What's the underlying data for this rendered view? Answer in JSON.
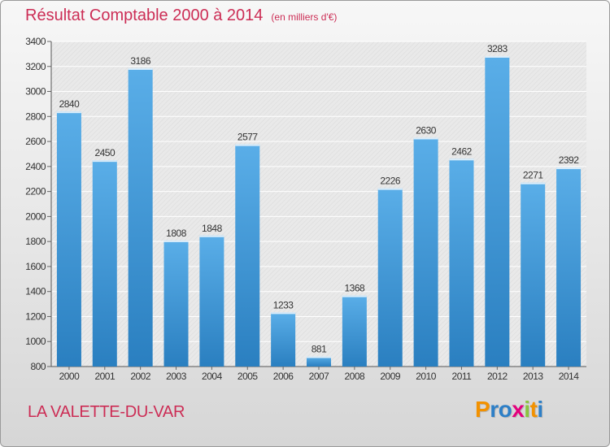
{
  "header": {
    "title": "Résultat Comptable 2000 à 2014",
    "subtitle": "(en milliers d'€)"
  },
  "footer": {
    "commune": "LA VALETTE-DU-VAR",
    "logo_letters": [
      "P",
      "r",
      "o",
      "x",
      "i",
      "t",
      "i"
    ],
    "logo_colors": [
      "#f29100",
      "#2d7fc7",
      "#2d7fc7",
      "#e3007d",
      "#8bc43f",
      "#f29100",
      "#2d7fc7"
    ]
  },
  "colors": {
    "bar_light": "#5aaee8",
    "bar_dark": "#2a7fc0",
    "title": "#cc2d55"
  },
  "chart_data": {
    "type": "bar",
    "title": "Résultat Comptable 2000 à 2014",
    "categories": [
      "2000",
      "2001",
      "2002",
      "2003",
      "2004",
      "2005",
      "2006",
      "2007",
      "2008",
      "2009",
      "2010",
      "2011",
      "2012",
      "2013",
      "2014"
    ],
    "values": [
      2840,
      2450,
      3186,
      1808,
      1848,
      2577,
      1233,
      881,
      1368,
      2226,
      2630,
      2462,
      3283,
      2271,
      2392
    ],
    "ylim": [
      800,
      3400
    ],
    "yticks": [
      800,
      1000,
      1200,
      1400,
      1600,
      1800,
      2000,
      2200,
      2400,
      2600,
      2800,
      3000,
      3200,
      3400
    ],
    "grid": true,
    "data_labels": true
  }
}
